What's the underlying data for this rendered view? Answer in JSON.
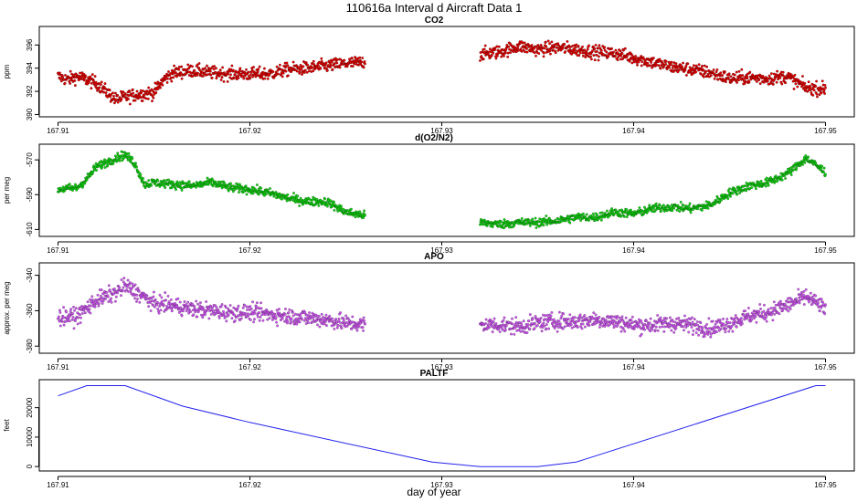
{
  "figure": {
    "title": "110616a   Interval d Aircraft Data 1",
    "xlabel": "day of year",
    "xlim": [
      167.91,
      167.95
    ],
    "xticks": [
      "167.91",
      "167.92",
      "167.93",
      "167.94",
      "167.95"
    ]
  },
  "chart_data": [
    {
      "type": "scatter",
      "title": "CO2",
      "ylabel": "ppm",
      "ylim": [
        389.8,
        397.6
      ],
      "yticks": [
        "390",
        "392",
        "394",
        "396"
      ],
      "color": "#e00000",
      "series": [
        {
          "name": "CO2",
          "segments": [
            {
              "x": [
                167.91,
                167.9105,
                167.911,
                167.912,
                167.913,
                167.914,
                167.915,
                167.9155,
                167.916,
                167.917,
                167.918,
                167.919,
                167.92,
                167.921,
                167.922,
                167.923,
                167.924,
                167.925,
                167.926
              ],
              "y": [
                393.3,
                393.0,
                393.3,
                392.7,
                391.3,
                391.7,
                391.9,
                393.0,
                393.6,
                393.8,
                393.6,
                393.5,
                393.5,
                393.5,
                393.9,
                394.0,
                394.2,
                394.4,
                394.5
              ]
            },
            {
              "x": [
                167.932,
                167.933,
                167.934,
                167.935,
                167.936,
                167.937,
                167.938,
                167.939,
                167.94,
                167.941,
                167.942,
                167.943,
                167.944,
                167.945,
                167.946,
                167.947,
                167.948,
                167.949,
                167.95
              ],
              "y": [
                395.2,
                395.4,
                395.9,
                395.6,
                395.8,
                395.6,
                395.4,
                395.3,
                394.9,
                394.5,
                394.1,
                393.9,
                393.6,
                393.1,
                393.2,
                393.1,
                393.3,
                392.3,
                392.2
              ]
            }
          ]
        }
      ],
      "noise": 0.55
    },
    {
      "type": "scatter",
      "title": "d(O2/N2)",
      "ylabel": "per meg",
      "ylim": [
        -614,
        -561
      ],
      "yticks": [
        "-570",
        "-590",
        "-610"
      ],
      "color": "#10d010",
      "series": [
        {
          "name": "d(O2/N2)",
          "segments": [
            {
              "x": [
                167.91,
                167.911,
                167.9115,
                167.912,
                167.913,
                167.9135,
                167.914,
                167.9145,
                167.915,
                167.916,
                167.917,
                167.918,
                167.919,
                167.92,
                167.921,
                167.922,
                167.923,
                167.924,
                167.925,
                167.926
              ],
              "y": [
                -587,
                -586,
                -581,
                -574,
                -569,
                -567,
                -572,
                -584,
                -583,
                -584,
                -585,
                -583,
                -586,
                -587,
                -589,
                -592,
                -594,
                -594,
                -600,
                -602
              ]
            },
            {
              "x": [
                167.932,
                167.933,
                167.934,
                167.935,
                167.936,
                167.937,
                167.938,
                167.939,
                167.94,
                167.941,
                167.942,
                167.943,
                167.944,
                167.945,
                167.946,
                167.947,
                167.948,
                167.949,
                167.95
              ],
              "y": [
                -606,
                -607,
                -606,
                -606,
                -605,
                -603,
                -603,
                -600,
                -601,
                -598,
                -597,
                -598,
                -596,
                -589,
                -585,
                -583,
                -578,
                -569,
                -577
              ]
            }
          ]
        }
      ],
      "noise": 2.4
    },
    {
      "type": "scatter",
      "title": "APO",
      "ylabel": "approx. per meg",
      "ylim": [
        -384,
        -333
      ],
      "yticks": [
        "-340",
        "-360",
        "-380"
      ],
      "color": "#cc55ee",
      "series": [
        {
          "name": "APO",
          "segments": [
            {
              "x": [
                167.91,
                167.911,
                167.912,
                167.913,
                167.9135,
                167.914,
                167.915,
                167.916,
                167.917,
                167.918,
                167.919,
                167.92,
                167.921,
                167.922,
                167.923,
                167.924,
                167.925,
                167.926
              ],
              "y": [
                -364,
                -363,
                -354,
                -350,
                -346,
                -349,
                -356,
                -357,
                -359,
                -360,
                -361,
                -361,
                -362,
                -363,
                -364,
                -365,
                -367,
                -368
              ]
            },
            {
              "x": [
                167.932,
                167.933,
                167.934,
                167.935,
                167.936,
                167.937,
                167.938,
                167.939,
                167.94,
                167.941,
                167.942,
                167.943,
                167.944,
                167.945,
                167.946,
                167.947,
                167.948,
                167.949,
                167.95
              ],
              "y": [
                -368,
                -368,
                -369,
                -367,
                -366,
                -366,
                -365,
                -366,
                -368,
                -368,
                -367,
                -368,
                -370,
                -367,
                -363,
                -361,
                -357,
                -352,
                -359
              ]
            }
          ]
        }
      ],
      "noise": 4.5
    },
    {
      "type": "line",
      "title": "PALTF",
      "ylabel": "feet",
      "ylim": [
        -1500,
        29500
      ],
      "yticks": [
        "0",
        "10000",
        "20000"
      ],
      "color": "#2222ee",
      "series": [
        {
          "name": "PALTF",
          "x": [
            167.91,
            167.9115,
            167.9125,
            167.9135,
            167.9165,
            167.92,
            167.9295,
            167.932,
            167.935,
            167.937,
            167.9495,
            167.95
          ],
          "y": [
            24000,
            27500,
            27500,
            27500,
            20500,
            15000,
            1500,
            0,
            0,
            1500,
            27500,
            27500
          ]
        }
      ]
    }
  ]
}
